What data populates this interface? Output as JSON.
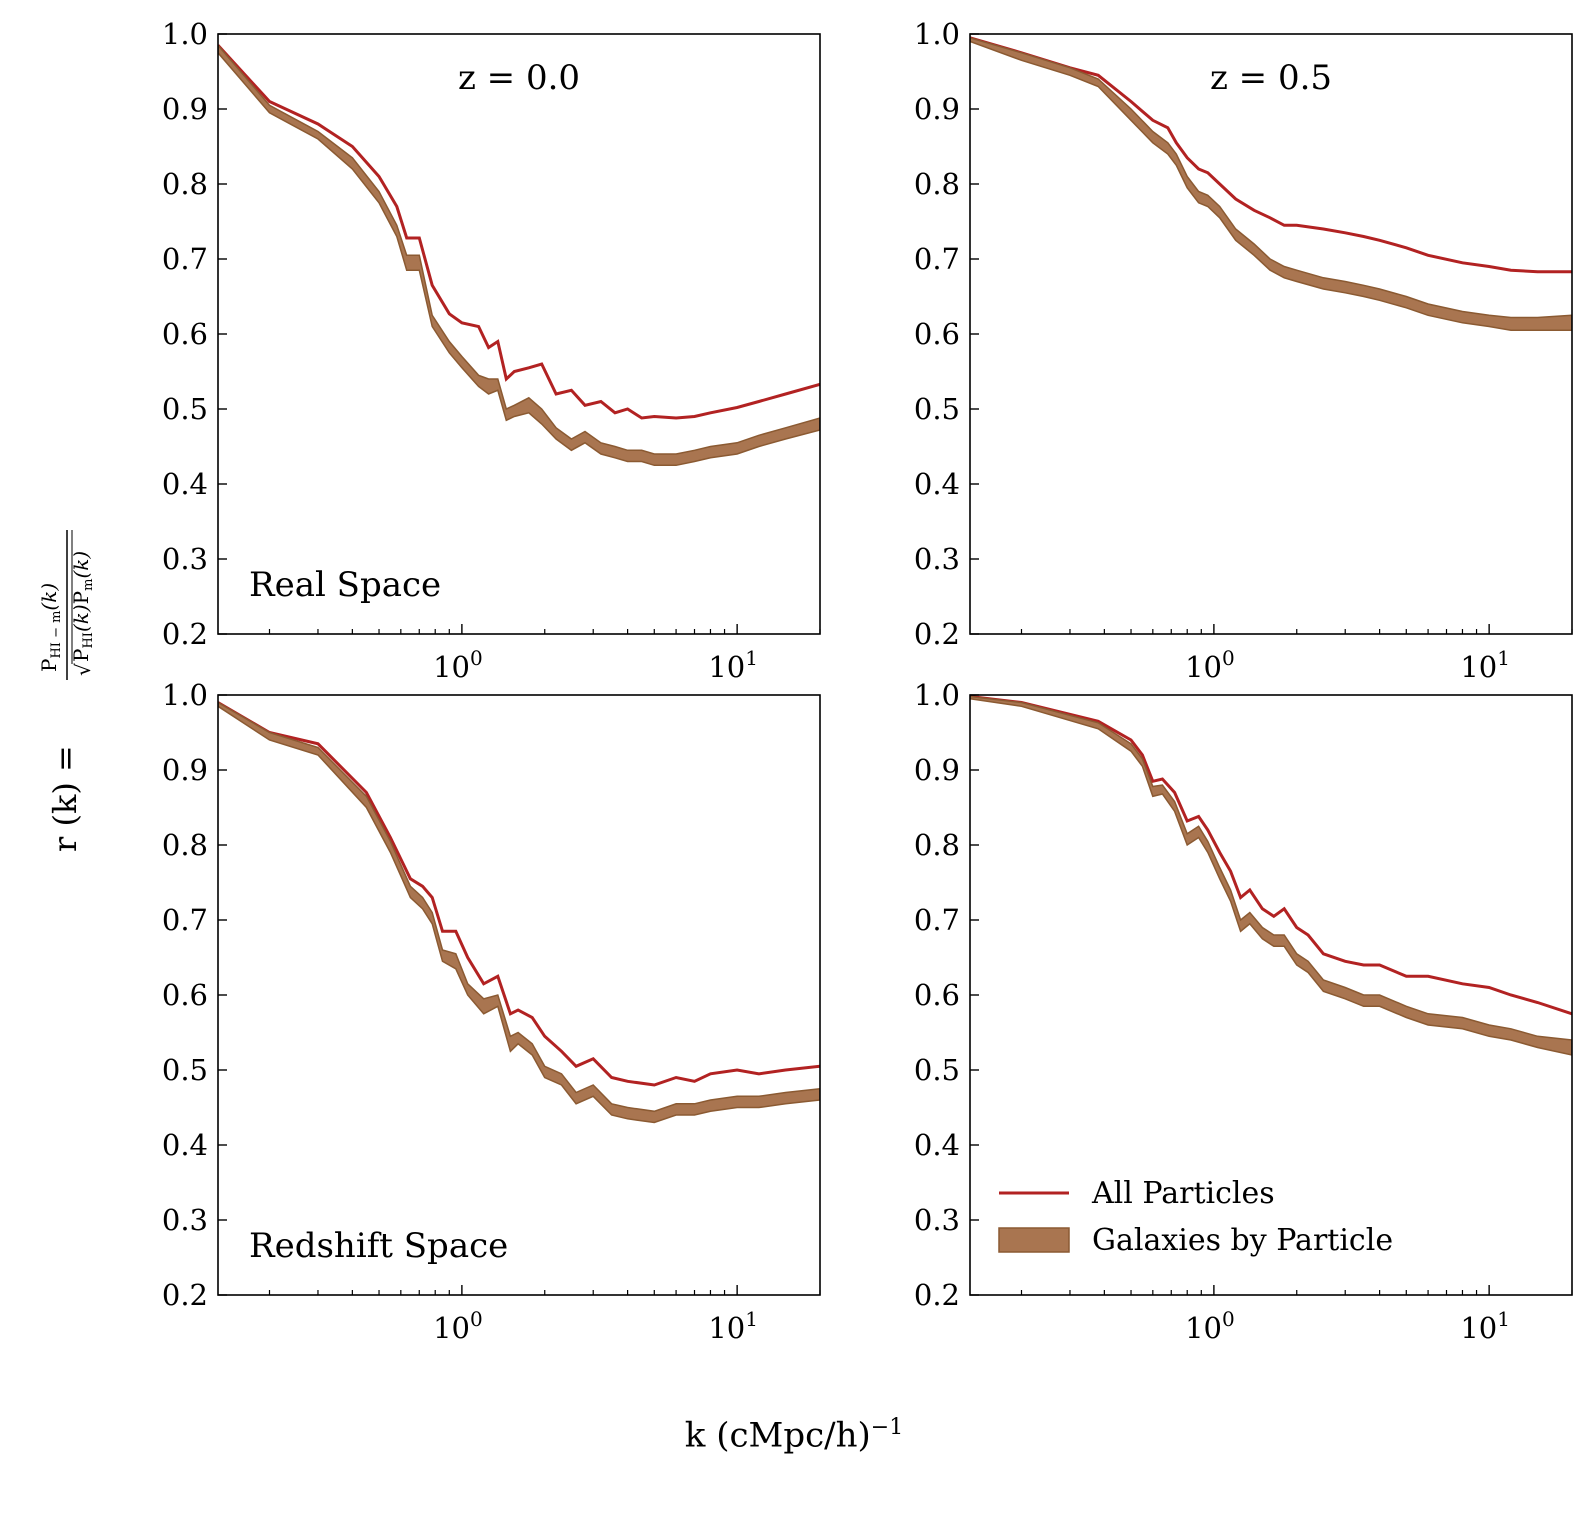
{
  "figure": {
    "xlabel_text": "k (cMpc/h)",
    "xlabel_exp": "−1",
    "ylabel": {
      "prefix": "r (k) = ",
      "num_P": "P",
      "num_sub": "HI − m",
      "num_k": "(k)",
      "den_P1": "P",
      "den_sub1": "HI",
      "den_k1": "(k)",
      "den_P2": "P",
      "den_sub2": "m",
      "den_k2": "(k)"
    },
    "colors": {
      "all_particles": "#b22222",
      "galaxies_fill": "#a97550",
      "galaxies_edge": "#8b5a32",
      "axes": "#000000"
    }
  },
  "chart_data": [
    {
      "type": "line",
      "panel": "top-left",
      "annotation_top": "z = 0.0",
      "annotation_bottom": "Real Space",
      "xscale": "log",
      "xlim": [
        0.13,
        20
      ],
      "ylim": [
        0.2,
        1.0
      ],
      "xticks": [
        1,
        10
      ],
      "xtick_labels": [
        {
          "base": "10",
          "exp": "0"
        },
        {
          "base": "10",
          "exp": "1"
        }
      ],
      "yticks": [
        "0.2",
        "0.3",
        "0.4",
        "0.5",
        "0.6",
        "0.7",
        "0.8",
        "0.9",
        "1.0"
      ],
      "series": [
        {
          "name": "All Particles",
          "x": [
            0.13,
            0.2,
            0.3,
            0.4,
            0.5,
            0.58,
            0.63,
            0.7,
            0.78,
            0.9,
            1.0,
            1.15,
            1.25,
            1.35,
            1.45,
            1.55,
            1.75,
            1.95,
            2.2,
            2.5,
            2.8,
            3.2,
            3.6,
            4.0,
            4.5,
            5.0,
            6.0,
            7.0,
            8.0,
            10.0,
            12.0,
            15.0,
            20.0
          ],
          "y": [
            0.985,
            0.91,
            0.88,
            0.85,
            0.81,
            0.77,
            0.728,
            0.728,
            0.665,
            0.627,
            0.615,
            0.61,
            0.582,
            0.59,
            0.54,
            0.55,
            0.555,
            0.56,
            0.52,
            0.525,
            0.505,
            0.51,
            0.495,
            0.5,
            0.488,
            0.49,
            0.488,
            0.49,
            0.495,
            0.502,
            0.51,
            0.52,
            0.533
          ]
        },
        {
          "name": "Galaxies by Particle",
          "x": [
            0.13,
            0.2,
            0.3,
            0.4,
            0.5,
            0.58,
            0.63,
            0.7,
            0.78,
            0.9,
            1.0,
            1.15,
            1.25,
            1.35,
            1.45,
            1.55,
            1.75,
            1.95,
            2.2,
            2.5,
            2.8,
            3.2,
            3.6,
            4.0,
            4.5,
            5.0,
            6.0,
            7.0,
            8.0,
            10.0,
            12.0,
            15.0,
            20.0
          ],
          "y_low": [
            0.975,
            0.895,
            0.86,
            0.82,
            0.775,
            0.73,
            0.685,
            0.685,
            0.61,
            0.575,
            0.555,
            0.53,
            0.52,
            0.525,
            0.485,
            0.49,
            0.495,
            0.48,
            0.46,
            0.445,
            0.455,
            0.44,
            0.435,
            0.43,
            0.43,
            0.425,
            0.425,
            0.43,
            0.435,
            0.44,
            0.45,
            0.46,
            0.472
          ],
          "y_high": [
            0.985,
            0.905,
            0.87,
            0.835,
            0.79,
            0.745,
            0.705,
            0.705,
            0.625,
            0.59,
            0.57,
            0.545,
            0.54,
            0.54,
            0.5,
            0.505,
            0.515,
            0.5,
            0.475,
            0.46,
            0.47,
            0.455,
            0.45,
            0.445,
            0.445,
            0.44,
            0.44,
            0.445,
            0.45,
            0.455,
            0.465,
            0.475,
            0.488
          ]
        }
      ]
    },
    {
      "type": "line",
      "panel": "top-right",
      "annotation_top": "z = 0.5",
      "annotation_bottom": "",
      "xscale": "log",
      "xlim": [
        0.13,
        20
      ],
      "ylim": [
        0.2,
        1.0
      ],
      "xticks": [
        1,
        10
      ],
      "xtick_labels": [
        {
          "base": "10",
          "exp": "0"
        },
        {
          "base": "10",
          "exp": "1"
        }
      ],
      "yticks": [
        "0.2",
        "0.3",
        "0.4",
        "0.5",
        "0.6",
        "0.7",
        "0.8",
        "0.9",
        "1.0"
      ],
      "series": [
        {
          "name": "All Particles",
          "x": [
            0.13,
            0.2,
            0.3,
            0.38,
            0.5,
            0.6,
            0.68,
            0.73,
            0.8,
            0.88,
            0.95,
            1.05,
            1.2,
            1.4,
            1.6,
            1.8,
            2.0,
            2.5,
            3.0,
            3.5,
            4.0,
            5.0,
            6.0,
            8.0,
            10.0,
            12.0,
            15.0,
            20.0
          ],
          "y": [
            0.995,
            0.975,
            0.955,
            0.945,
            0.91,
            0.885,
            0.875,
            0.855,
            0.835,
            0.82,
            0.815,
            0.8,
            0.78,
            0.765,
            0.755,
            0.745,
            0.745,
            0.74,
            0.735,
            0.73,
            0.725,
            0.715,
            0.705,
            0.695,
            0.69,
            0.685,
            0.683,
            0.683
          ]
        },
        {
          "name": "Galaxies by Particle",
          "x": [
            0.13,
            0.2,
            0.3,
            0.38,
            0.5,
            0.6,
            0.68,
            0.73,
            0.8,
            0.88,
            0.95,
            1.05,
            1.2,
            1.4,
            1.6,
            1.8,
            2.0,
            2.5,
            3.0,
            3.5,
            4.0,
            5.0,
            6.0,
            8.0,
            10.0,
            12.0,
            15.0,
            20.0
          ],
          "y_low": [
            0.99,
            0.965,
            0.945,
            0.93,
            0.885,
            0.855,
            0.84,
            0.825,
            0.795,
            0.775,
            0.77,
            0.755,
            0.725,
            0.705,
            0.685,
            0.675,
            0.67,
            0.66,
            0.655,
            0.65,
            0.645,
            0.635,
            0.625,
            0.615,
            0.61,
            0.605,
            0.605,
            0.605
          ],
          "y_high": [
            0.995,
            0.975,
            0.955,
            0.94,
            0.9,
            0.87,
            0.855,
            0.84,
            0.81,
            0.79,
            0.785,
            0.77,
            0.74,
            0.72,
            0.7,
            0.69,
            0.685,
            0.675,
            0.67,
            0.665,
            0.66,
            0.65,
            0.64,
            0.63,
            0.625,
            0.622,
            0.622,
            0.625
          ]
        }
      ]
    },
    {
      "type": "line",
      "panel": "bottom-left",
      "annotation_top": "",
      "annotation_bottom": "Redshift Space",
      "xscale": "log",
      "xlim": [
        0.13,
        20
      ],
      "ylim": [
        0.2,
        1.0
      ],
      "xticks": [
        1,
        10
      ],
      "xtick_labels": [
        {
          "base": "10",
          "exp": "0"
        },
        {
          "base": "10",
          "exp": "1"
        }
      ],
      "yticks": [
        "0.2",
        "0.3",
        "0.4",
        "0.5",
        "0.6",
        "0.7",
        "0.8",
        "0.9",
        "1.0"
      ],
      "series": [
        {
          "name": "All Particles",
          "x": [
            0.13,
            0.2,
            0.3,
            0.45,
            0.55,
            0.65,
            0.72,
            0.78,
            0.85,
            0.95,
            1.05,
            1.2,
            1.35,
            1.5,
            1.6,
            1.8,
            2.0,
            2.3,
            2.6,
            3.0,
            3.5,
            4.0,
            5.0,
            6.0,
            7.0,
            8.0,
            10.0,
            12.0,
            15.0,
            20.0
          ],
          "y": [
            0.99,
            0.95,
            0.935,
            0.87,
            0.81,
            0.755,
            0.745,
            0.73,
            0.685,
            0.685,
            0.65,
            0.615,
            0.625,
            0.575,
            0.58,
            0.57,
            0.545,
            0.525,
            0.505,
            0.515,
            0.49,
            0.485,
            0.48,
            0.49,
            0.485,
            0.495,
            0.5,
            0.495,
            0.5,
            0.505
          ]
        },
        {
          "name": "Galaxies by Particle",
          "x": [
            0.13,
            0.2,
            0.3,
            0.45,
            0.55,
            0.65,
            0.72,
            0.78,
            0.85,
            0.95,
            1.05,
            1.2,
            1.35,
            1.5,
            1.6,
            1.8,
            2.0,
            2.3,
            2.6,
            3.0,
            3.5,
            4.0,
            5.0,
            6.0,
            7.0,
            8.0,
            10.0,
            12.0,
            15.0,
            20.0
          ],
          "y_low": [
            0.985,
            0.94,
            0.92,
            0.85,
            0.79,
            0.73,
            0.715,
            0.695,
            0.645,
            0.635,
            0.6,
            0.575,
            0.585,
            0.525,
            0.535,
            0.52,
            0.49,
            0.48,
            0.455,
            0.465,
            0.44,
            0.435,
            0.43,
            0.44,
            0.44,
            0.445,
            0.45,
            0.45,
            0.455,
            0.46
          ],
          "y_high": [
            0.99,
            0.95,
            0.93,
            0.865,
            0.805,
            0.745,
            0.73,
            0.71,
            0.66,
            0.655,
            0.615,
            0.595,
            0.6,
            0.545,
            0.55,
            0.535,
            0.505,
            0.495,
            0.47,
            0.48,
            0.455,
            0.45,
            0.445,
            0.455,
            0.455,
            0.46,
            0.465,
            0.465,
            0.47,
            0.475
          ]
        }
      ]
    },
    {
      "type": "line",
      "panel": "bottom-right",
      "annotation_top": "",
      "annotation_bottom": "",
      "xscale": "log",
      "xlim": [
        0.13,
        20
      ],
      "ylim": [
        0.2,
        1.0
      ],
      "xticks": [
        1,
        10
      ],
      "xtick_labels": [
        {
          "base": "10",
          "exp": "0"
        },
        {
          "base": "10",
          "exp": "1"
        }
      ],
      "yticks": [
        "0.2",
        "0.3",
        "0.4",
        "0.5",
        "0.6",
        "0.7",
        "0.8",
        "0.9",
        "1.0"
      ],
      "legend": {
        "placement": "lower-right",
        "entries": [
          "All Particles",
          "Galaxies by Particle"
        ]
      },
      "series": [
        {
          "name": "All Particles",
          "x": [
            0.13,
            0.2,
            0.38,
            0.5,
            0.55,
            0.6,
            0.65,
            0.72,
            0.8,
            0.88,
            0.95,
            1.05,
            1.15,
            1.25,
            1.35,
            1.5,
            1.65,
            1.8,
            2.0,
            2.2,
            2.5,
            3.0,
            3.5,
            4.0,
            5.0,
            6.0,
            8.0,
            10.0,
            12.0,
            15.0,
            20.0
          ],
          "y": [
            0.998,
            0.99,
            0.965,
            0.94,
            0.92,
            0.885,
            0.888,
            0.87,
            0.832,
            0.838,
            0.82,
            0.79,
            0.765,
            0.73,
            0.74,
            0.715,
            0.705,
            0.715,
            0.69,
            0.68,
            0.655,
            0.645,
            0.64,
            0.64,
            0.625,
            0.625,
            0.615,
            0.61,
            0.6,
            0.59,
            0.575
          ]
        },
        {
          "name": "Galaxies by Particle",
          "x": [
            0.13,
            0.2,
            0.38,
            0.5,
            0.55,
            0.6,
            0.65,
            0.72,
            0.8,
            0.88,
            0.95,
            1.05,
            1.15,
            1.25,
            1.35,
            1.5,
            1.65,
            1.8,
            2.0,
            2.2,
            2.5,
            3.0,
            3.5,
            4.0,
            5.0,
            6.0,
            8.0,
            10.0,
            12.0,
            15.0,
            20.0
          ],
          "y_low": [
            0.995,
            0.985,
            0.955,
            0.925,
            0.905,
            0.865,
            0.868,
            0.845,
            0.8,
            0.81,
            0.79,
            0.755,
            0.725,
            0.685,
            0.695,
            0.675,
            0.665,
            0.665,
            0.64,
            0.63,
            0.605,
            0.595,
            0.585,
            0.585,
            0.57,
            0.56,
            0.555,
            0.545,
            0.54,
            0.53,
            0.52
          ],
          "y_high": [
            0.998,
            0.99,
            0.963,
            0.935,
            0.915,
            0.878,
            0.88,
            0.858,
            0.815,
            0.825,
            0.805,
            0.77,
            0.74,
            0.7,
            0.71,
            0.69,
            0.68,
            0.68,
            0.655,
            0.645,
            0.62,
            0.61,
            0.6,
            0.6,
            0.585,
            0.575,
            0.57,
            0.56,
            0.555,
            0.545,
            0.54
          ]
        }
      ]
    }
  ]
}
